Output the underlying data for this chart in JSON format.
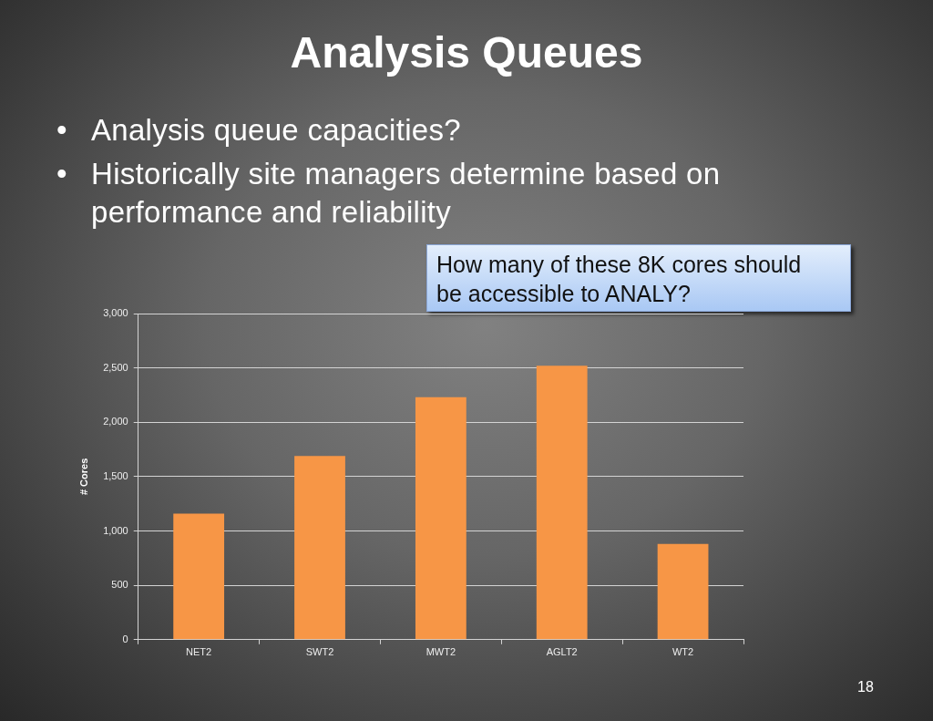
{
  "chart_data": {
    "type": "bar",
    "title": "Analysis Queues",
    "annotations": [
      "•\tAnalysis queue capacities?",
      "•\tHistorically site managers determine based on performance and reliability",
      "How many of these 8K cores should be accessible to ANALY?",
      "18"
    ],
    "ylabel": "# Cores",
    "categories": [
      "NET2",
      "SWT2",
      "MWT2",
      "AGLT2",
      "WT2"
    ],
    "values": [
      1160,
      1690,
      2230,
      2520,
      880
    ],
    "color": "#f79646",
    "ylim": [
      0,
      3000
    ],
    "yticks": [
      0,
      500,
      {
        "value": 1000,
        "label": "1,000"
      },
      {
        "value": 1500,
        "label": "1,500"
      },
      {
        "value": 2000,
        "label": "2,000"
      },
      {
        "value": 2500,
        "label": "2,500"
      },
      {
        "value": 3000,
        "label": "3,000"
      }
    ],
    "grid": "y"
  }
}
